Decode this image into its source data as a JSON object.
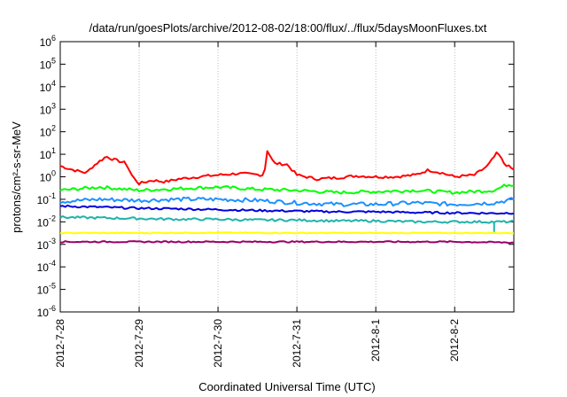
{
  "chart_data": {
    "type": "line",
    "title": "/data/run/goesPlots/archive/2012-08-02/18:00/flux/../flux/5daysMoonFluxes.txt",
    "xlabel": "Coordinated Universal Time (UTC)",
    "ylabel": "protons/cm²-s-sr-MeV",
    "yscale": "log",
    "ylim_exp": [
      -6,
      6
    ],
    "xlim": [
      "2012-7-28",
      "2012-8-2 18:00"
    ],
    "x_ticks": [
      "2012-7-28",
      "2012-7-29",
      "2012-7-30",
      "2012-7-31",
      "2012-8-1",
      "2012-8-2"
    ],
    "y_ticks": [
      "10^6",
      "10^5",
      "10^4",
      "10^3",
      "10^2",
      "10^1",
      "10^0",
      "10^-1",
      "10^-2",
      "10^-3",
      "10^-4",
      "10^-5",
      "10^-6"
    ],
    "grid": true,
    "legend": "none",
    "series": [
      {
        "color": "#ff0000",
        "points": [
          [
            "2012-7-28 00:00",
            3.0
          ],
          [
            "2012-7-28 04:00",
            2.0
          ],
          [
            "2012-7-28 08:00",
            1.5
          ],
          [
            "2012-7-28 10:00",
            3.0
          ],
          [
            "2012-7-28 14:00",
            8.0
          ],
          [
            "2012-7-28 16:00",
            6.0
          ],
          [
            "2012-7-28 20:00",
            4.0
          ],
          [
            "2012-7-28 22:00",
            1.0
          ],
          [
            "2012-7-29 00:00",
            0.5
          ],
          [
            "2012-7-29 04:00",
            0.7
          ],
          [
            "2012-7-29 08:00",
            0.6
          ],
          [
            "2012-7-29 12:00",
            0.8
          ],
          [
            "2012-7-29 18:00",
            1.0
          ],
          [
            "2012-7-30 00:00",
            1.2
          ],
          [
            "2012-7-30 06:00",
            1.4
          ],
          [
            "2012-7-30 10:00",
            1.3
          ],
          [
            "2012-7-30 14:00",
            1.2
          ],
          [
            "2012-7-30 15:00",
            15.0
          ],
          [
            "2012-7-30 17:00",
            4.0
          ],
          [
            "2012-7-30 21:00",
            3.5
          ],
          [
            "2012-7-31 00:00",
            1.2
          ],
          [
            "2012-7-31 06:00",
            0.8
          ],
          [
            "2012-7-31 12:00",
            0.9
          ],
          [
            "2012-7-31 18:00",
            1.1
          ],
          [
            "2012-8-1 00:00",
            1.0
          ],
          [
            "2012-8-1 06:00",
            1.0
          ],
          [
            "2012-8-1 12:00",
            1.2
          ],
          [
            "2012-8-1 16:00",
            2.0
          ],
          [
            "2012-8-1 20:00",
            1.5
          ],
          [
            "2012-8-2 00:00",
            1.0
          ],
          [
            "2012-8-2 06:00",
            1.2
          ],
          [
            "2012-8-2 10:00",
            3.0
          ],
          [
            "2012-8-2 13:00",
            12.0
          ],
          [
            "2012-8-2 15:00",
            4.0
          ],
          [
            "2012-8-2 18:00",
            2.0
          ]
        ]
      },
      {
        "color": "#00ff00",
        "points": [
          [
            "2012-7-28 00:00",
            0.25
          ],
          [
            "2012-7-28 12:00",
            0.35
          ],
          [
            "2012-7-29 00:00",
            0.25
          ],
          [
            "2012-7-29 12:00",
            0.3
          ],
          [
            "2012-7-30 00:00",
            0.35
          ],
          [
            "2012-7-30 12:00",
            0.28
          ],
          [
            "2012-7-31 00:00",
            0.25
          ],
          [
            "2012-7-31 12:00",
            0.2
          ],
          [
            "2012-8-1 00:00",
            0.22
          ],
          [
            "2012-8-1 12:00",
            0.25
          ],
          [
            "2012-8-2 00:00",
            0.2
          ],
          [
            "2012-8-2 12:00",
            0.25
          ],
          [
            "2012-8-2 16:00",
            0.45
          ],
          [
            "2012-8-2 18:00",
            0.45
          ]
        ]
      },
      {
        "color": "#1e90ff",
        "points": [
          [
            "2012-7-28 00:00",
            0.08
          ],
          [
            "2012-7-28 12:00",
            0.1
          ],
          [
            "2012-7-29 00:00",
            0.09
          ],
          [
            "2012-7-29 12:00",
            0.1
          ],
          [
            "2012-7-30 00:00",
            0.1
          ],
          [
            "2012-7-30 12:00",
            0.09
          ],
          [
            "2012-7-31 00:00",
            0.07
          ],
          [
            "2012-7-31 12:00",
            0.06
          ],
          [
            "2012-8-1 00:00",
            0.06
          ],
          [
            "2012-8-1 12:00",
            0.07
          ],
          [
            "2012-8-2 00:00",
            0.06
          ],
          [
            "2012-8-2 12:00",
            0.07
          ],
          [
            "2012-8-2 18:00",
            0.1
          ]
        ]
      },
      {
        "color": "#0000dd",
        "points": [
          [
            "2012-7-28 00:00",
            0.05
          ],
          [
            "2012-7-28 12:00",
            0.045
          ],
          [
            "2012-7-29 00:00",
            0.04
          ],
          [
            "2012-7-29 12:00",
            0.038
          ],
          [
            "2012-7-30 00:00",
            0.035
          ],
          [
            "2012-7-30 12:00",
            0.032
          ],
          [
            "2012-7-31 00:00",
            0.03
          ],
          [
            "2012-7-31 12:00",
            0.028
          ],
          [
            "2012-8-1 00:00",
            0.028
          ],
          [
            "2012-8-1 12:00",
            0.026
          ],
          [
            "2012-8-2 00:00",
            0.025
          ],
          [
            "2012-8-2 12:00",
            0.024
          ],
          [
            "2012-8-2 18:00",
            0.025
          ]
        ]
      },
      {
        "color": "#20b2aa",
        "points": [
          [
            "2012-7-28 00:00",
            0.016
          ],
          [
            "2012-7-28 12:00",
            0.015
          ],
          [
            "2012-7-29 00:00",
            0.014
          ],
          [
            "2012-7-29 12:00",
            0.013
          ],
          [
            "2012-7-30 00:00",
            0.013
          ],
          [
            "2012-7-30 12:00",
            0.012
          ],
          [
            "2012-7-31 00:00",
            0.012
          ],
          [
            "2012-7-31 12:00",
            0.011
          ],
          [
            "2012-8-1 00:00",
            0.011
          ],
          [
            "2012-8-1 12:00",
            0.01
          ],
          [
            "2012-8-2 00:00",
            0.01
          ],
          [
            "2012-8-2 12:00",
            0.01
          ],
          [
            "2012-8-2 18:00",
            0.01
          ]
        ]
      },
      {
        "color": "#ffff00",
        "points": [
          [
            "2012-7-28 00:00",
            0.0032
          ],
          [
            "2012-7-29 00:00",
            0.0032
          ],
          [
            "2012-7-30 00:00",
            0.0033
          ],
          [
            "2012-7-31 00:00",
            0.0032
          ],
          [
            "2012-8-1 00:00",
            0.0032
          ],
          [
            "2012-8-2 00:00",
            0.0032
          ],
          [
            "2012-8-2 18:00",
            0.0032
          ]
        ]
      },
      {
        "color": "#990066",
        "points": [
          [
            "2012-7-28 00:00",
            0.0013
          ],
          [
            "2012-7-29 00:00",
            0.0013
          ],
          [
            "2012-7-30 00:00",
            0.0013
          ],
          [
            "2012-7-31 00:00",
            0.0013
          ],
          [
            "2012-8-1 00:00",
            0.0013
          ],
          [
            "2012-8-2 00:00",
            0.0013
          ],
          [
            "2012-8-2 18:00",
            0.0012
          ]
        ]
      }
    ]
  }
}
